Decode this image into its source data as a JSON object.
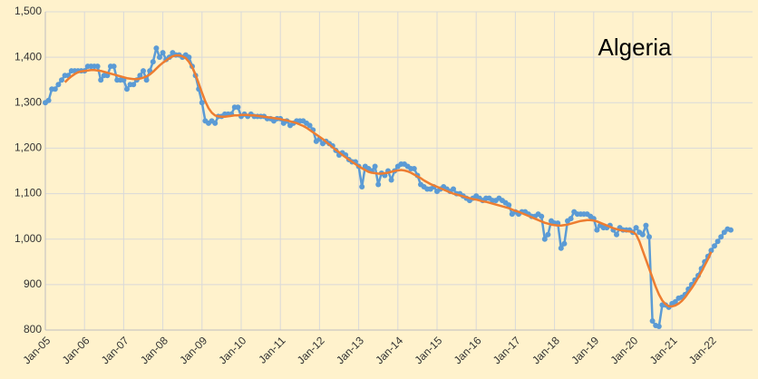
{
  "chart_data": {
    "type": "line",
    "title": "Algeria",
    "categories": [
      "Jan-05",
      null,
      null,
      null,
      null,
      null,
      null,
      null,
      null,
      null,
      null,
      null,
      "Jan-06",
      null,
      null,
      null,
      null,
      null,
      null,
      null,
      null,
      null,
      null,
      null,
      "Jan-07",
      null,
      null,
      null,
      null,
      null,
      null,
      null,
      null,
      null,
      null,
      null,
      "Jan-08",
      null,
      null,
      null,
      null,
      null,
      null,
      null,
      null,
      null,
      null,
      null,
      "Jan-09",
      null,
      null,
      null,
      null,
      null,
      null,
      null,
      null,
      null,
      null,
      null,
      "Jan-10",
      null,
      null,
      null,
      null,
      null,
      null,
      null,
      null,
      null,
      null,
      null,
      "Jan-11",
      null,
      null,
      null,
      null,
      null,
      null,
      null,
      null,
      null,
      null,
      null,
      "Jan-12",
      null,
      null,
      null,
      null,
      null,
      null,
      null,
      null,
      null,
      null,
      null,
      "Jan-13",
      null,
      null,
      null,
      null,
      null,
      null,
      null,
      null,
      null,
      null,
      null,
      "Jan-14",
      null,
      null,
      null,
      null,
      null,
      null,
      null,
      null,
      null,
      null,
      null,
      "Jan-15",
      null,
      null,
      null,
      null,
      null,
      null,
      null,
      null,
      null,
      null,
      null,
      "Jan-16",
      null,
      null,
      null,
      null,
      null,
      null,
      null,
      null,
      null,
      null,
      null,
      "Jan-17",
      null,
      null,
      null,
      null,
      null,
      null,
      null,
      null,
      null,
      null,
      null,
      "Jan-18",
      null,
      null,
      null,
      null,
      null,
      null,
      null,
      null,
      null,
      null,
      null,
      "Jan-19",
      null,
      null,
      null,
      null,
      null,
      null,
      null,
      null,
      null,
      null,
      null,
      "Jan-20",
      null,
      null,
      null,
      null,
      null,
      null,
      null,
      null,
      null,
      null,
      null,
      "Jan-21",
      null,
      null,
      null,
      null,
      null,
      null,
      null,
      null,
      null,
      null,
      null,
      "Jan-22",
      null,
      null,
      null,
      null,
      null,
      null
    ],
    "series": [
      {
        "color": "#5b9bd5",
        "markers": true,
        "values": [
          1300,
          1305,
          1330,
          1330,
          1340,
          1350,
          1360,
          1360,
          1370,
          1370,
          1370,
          1370,
          1370,
          1380,
          1380,
          1380,
          1380,
          1350,
          1360,
          1360,
          1380,
          1380,
          1350,
          1350,
          1350,
          1330,
          1340,
          1340,
          1350,
          1360,
          1370,
          1350,
          1370,
          1390,
          1420,
          1400,
          1410,
          1395,
          1400,
          1410,
          1405,
          1405,
          1400,
          1405,
          1400,
          1380,
          1360,
          1330,
          1300,
          1260,
          1255,
          1260,
          1255,
          1270,
          1270,
          1275,
          1275,
          1275,
          1290,
          1290,
          1270,
          1275,
          1270,
          1275,
          1270,
          1270,
          1270,
          1270,
          1265,
          1265,
          1260,
          1265,
          1265,
          1255,
          1260,
          1250,
          1255,
          1260,
          1260,
          1260,
          1255,
          1250,
          1240,
          1215,
          1220,
          1210,
          1215,
          1210,
          1205,
          1195,
          1185,
          1190,
          1185,
          1175,
          1170,
          1170,
          1160,
          1115,
          1160,
          1155,
          1150,
          1160,
          1120,
          1145,
          1140,
          1150,
          1130,
          1150,
          1160,
          1165,
          1165,
          1160,
          1155,
          1155,
          1140,
          1120,
          1115,
          1110,
          1110,
          1115,
          1105,
          1110,
          1115,
          1110,
          1105,
          1110,
          1100,
          1100,
          1095,
          1090,
          1085,
          1090,
          1095,
          1090,
          1085,
          1090,
          1090,
          1085,
          1085,
          1090,
          1085,
          1080,
          1075,
          1055,
          1060,
          1055,
          1060,
          1060,
          1055,
          1050,
          1050,
          1055,
          1050,
          1000,
          1010,
          1040,
          1035,
          1035,
          980,
          990,
          1040,
          1045,
          1060,
          1055,
          1055,
          1055,
          1055,
          1050,
          1045,
          1020,
          1030,
          1025,
          1025,
          1030,
          1020,
          1010,
          1025,
          1020,
          1020,
          1020,
          1015,
          1025,
          1015,
          1010,
          1030,
          1005,
          820,
          810,
          808,
          855,
          855,
          850,
          858,
          862,
          870,
          872,
          878,
          890,
          900,
          910,
          920,
          935,
          950,
          962,
          975,
          985,
          995,
          1005,
          1015,
          1022,
          1020
        ]
      },
      {
        "color": "#ed7d31",
        "markers": false,
        "values": [
          null,
          null,
          null,
          null,
          null,
          null,
          1345,
          1352,
          1358,
          1363,
          1367,
          1369,
          1370,
          1371,
          1372,
          1372,
          1371,
          1370,
          1368,
          1366,
          1364,
          1362,
          1360,
          1358,
          1356,
          1354,
          1353,
          1352,
          1352,
          1353,
          1355,
          1358,
          1362,
          1368,
          1375,
          1382,
          1388,
          1393,
          1398,
          1402,
          1404,
          1404,
          1402,
          1398,
          1390,
          1378,
          1362,
          1342,
          1322,
          1303,
          1288,
          1278,
          1272,
          1270,
          1269,
          1269,
          1270,
          1271,
          1272,
          1272,
          1273,
          1273,
          1273,
          1272,
          1272,
          1271,
          1270,
          1269,
          1268,
          1267,
          1266,
          1265,
          1264,
          1262,
          1261,
          1259,
          1257,
          1255,
          1252,
          1249,
          1245,
          1240,
          1235,
          1230,
          1225,
          1220,
          1214,
          1208,
          1202,
          1196,
          1191,
          1185,
          1180,
          1175,
          1170,
          1165,
          1160,
          1156,
          1152,
          1148,
          1146,
          1145,
          1144,
          1144,
          1145,
          1146,
          1148,
          1150,
          1151,
          1152,
          1151,
          1149,
          1146,
          1142,
          1138,
          1134,
          1129,
          1125,
          1121,
          1118,
          1115,
          1112,
          1109,
          1106,
          1103,
          1100,
          1098,
          1096,
          1094,
          1092,
          1090,
          1088,
          1087,
          1085,
          1083,
          1082,
          1080,
          1078,
          1076,
          1074,
          1072,
          1070,
          1068,
          1065,
          1062,
          1060,
          1057,
          1054,
          1051,
          1048,
          1045,
          1042,
          1039,
          1036,
          1034,
          1032,
          1031,
          1030,
          1030,
          1031,
          1032,
          1034,
          1036,
          1038,
          1040,
          1041,
          1042,
          1042,
          1041,
          1039,
          1036,
          1033,
          1030,
          1027,
          1024,
          1022,
          1020,
          1019,
          1018,
          1017,
          1016,
          1010,
          995,
          975,
          955,
          935,
          915,
          895,
          878,
          865,
          857,
          852,
          852,
          854,
          858,
          864,
          872,
          882,
          892,
          903,
          915,
          928,
          942,
          956,
          972,
          null,
          null,
          null,
          null,
          null,
          null
        ]
      }
    ],
    "ylim": [
      800,
      1500
    ],
    "yticks": [
      800,
      900,
      {
        "value": 1000,
        "label": "1,000"
      },
      {
        "value": 1100,
        "label": "1,100"
      },
      {
        "value": 1200,
        "label": "1,200"
      },
      {
        "value": 1300,
        "label": "1,300"
      },
      {
        "value": 1400,
        "label": "1,400"
      },
      {
        "value": 1500,
        "label": "1,500"
      }
    ],
    "grid": true
  }
}
